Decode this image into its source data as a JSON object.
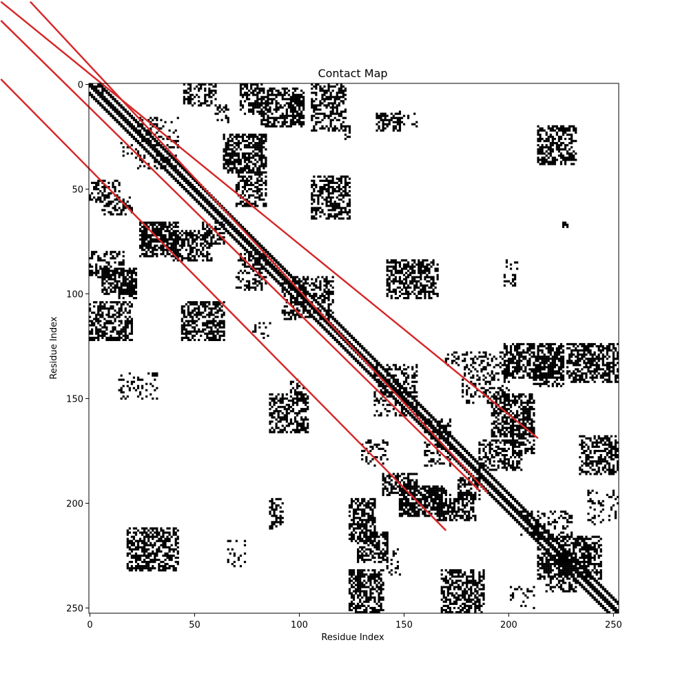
{
  "chart_data": {
    "type": "heatmap",
    "title": "Contact Map",
    "xlabel": "Residue Index",
    "ylabel": "Residue Index",
    "n_residues": 253,
    "xlim": [
      0,
      252
    ],
    "ylim": [
      252,
      0
    ],
    "x_ticks": [
      0,
      50,
      100,
      150,
      200,
      250
    ],
    "y_ticks": [
      0,
      50,
      100,
      150,
      200,
      250
    ],
    "grid": false,
    "colors": {
      "contact": "#000000",
      "background": "#ffffff",
      "overlay": "#d62728"
    },
    "diagonal_bands": [
      {
        "offset": 0,
        "start": 0,
        "end": 252,
        "width": 2
      },
      {
        "offset": 4,
        "start": 0,
        "end": 248,
        "width": 2
      }
    ],
    "contact_blocks": [
      {
        "x": [
          2,
          6
        ],
        "y": [
          0,
          4
        ],
        "density": 0.5
      },
      {
        "x": [
          45,
          60
        ],
        "y": [
          0,
          10
        ],
        "density": 0.45
      },
      {
        "x": [
          60,
          66
        ],
        "y": [
          10,
          18
        ],
        "density": 0.4
      },
      {
        "x": [
          72,
          82
        ],
        "y": [
          0,
          14
        ],
        "density": 0.5
      },
      {
        "x": [
          82,
          102
        ],
        "y": [
          2,
          20
        ],
        "density": 0.6
      },
      {
        "x": [
          106,
          122
        ],
        "y": [
          0,
          22
        ],
        "density": 0.5
      },
      {
        "x": [
          122,
          124
        ],
        "y": [
          20,
          26
        ],
        "density": 0.4
      },
      {
        "x": [
          137,
          148
        ],
        "y": [
          14,
          22
        ],
        "density": 0.5
      },
      {
        "x": [
          148,
          156
        ],
        "y": [
          12,
          20
        ],
        "density": 0.2
      },
      {
        "x": [
          64,
          84
        ],
        "y": [
          24,
          42
        ],
        "density": 0.65
      },
      {
        "x": [
          70,
          84
        ],
        "y": [
          42,
          58
        ],
        "density": 0.5
      },
      {
        "x": [
          22,
          42
        ],
        "y": [
          16,
          40
        ],
        "density": 0.25
      },
      {
        "x": [
          14,
          20
        ],
        "y": [
          28,
          34
        ],
        "density": 0.3
      },
      {
        "x": [
          106,
          124
        ],
        "y": [
          44,
          64
        ],
        "density": 0.55
      },
      {
        "x": [
          214,
          232
        ],
        "y": [
          20,
          38
        ],
        "density": 0.55
      },
      {
        "x": [
          226,
          228
        ],
        "y": [
          66,
          68
        ],
        "density": 0.8
      },
      {
        "x": [
          198,
          204
        ],
        "y": [
          84,
          96
        ],
        "density": 0.25
      },
      {
        "x": [
          142,
          166
        ],
        "y": [
          84,
          102
        ],
        "density": 0.55
      },
      {
        "x": [
          110,
          114
        ],
        "y": [
          94,
          104
        ],
        "density": 0.3
      },
      {
        "x": [
          0,
          14
        ],
        "y": [
          46,
          56
        ],
        "density": 0.4
      },
      {
        "x": [
          6,
          20
        ],
        "y": [
          54,
          62
        ],
        "density": 0.35
      },
      {
        "x": [
          24,
          42
        ],
        "y": [
          66,
          82
        ],
        "density": 0.7
      },
      {
        "x": [
          40,
          58
        ],
        "y": [
          70,
          84
        ],
        "density": 0.55
      },
      {
        "x": [
          54,
          64
        ],
        "y": [
          66,
          76
        ],
        "density": 0.45
      },
      {
        "x": [
          0,
          16
        ],
        "y": [
          80,
          92
        ],
        "density": 0.45
      },
      {
        "x": [
          6,
          22
        ],
        "y": [
          88,
          100
        ],
        "density": 0.65
      },
      {
        "x": [
          14,
          22
        ],
        "y": [
          96,
          102
        ],
        "density": 0.45
      },
      {
        "x": [
          0,
          20
        ],
        "y": [
          104,
          122
        ],
        "density": 0.55
      },
      {
        "x": [
          44,
          64
        ],
        "y": [
          104,
          122
        ],
        "density": 0.55
      },
      {
        "x": [
          70,
          84
        ],
        "y": [
          80,
          98
        ],
        "density": 0.35
      },
      {
        "x": [
          92,
          116
        ],
        "y": [
          92,
          112
        ],
        "density": 0.4
      },
      {
        "x": [
          78,
          86
        ],
        "y": [
          114,
          122
        ],
        "density": 0.2
      },
      {
        "x": [
          14,
          32
        ],
        "y": [
          138,
          150
        ],
        "density": 0.3
      },
      {
        "x": [
          86,
          104
        ],
        "y": [
          148,
          166
        ],
        "density": 0.55
      },
      {
        "x": [
          96,
          102
        ],
        "y": [
          140,
          148
        ],
        "density": 0.3
      },
      {
        "x": [
          136,
          156
        ],
        "y": [
          134,
          158
        ],
        "density": 0.35
      },
      {
        "x": [
          170,
          176
        ],
        "y": [
          128,
          134
        ],
        "density": 0.3
      },
      {
        "x": [
          178,
          200
        ],
        "y": [
          128,
          152
        ],
        "density": 0.3
      },
      {
        "x": [
          198,
          226
        ],
        "y": [
          124,
          140
        ],
        "density": 0.6
      },
      {
        "x": [
          212,
          226
        ],
        "y": [
          130,
          144
        ],
        "density": 0.5
      },
      {
        "x": [
          228,
          252
        ],
        "y": [
          124,
          142
        ],
        "density": 0.55
      },
      {
        "x": [
          192,
          212
        ],
        "y": [
          148,
          168
        ],
        "density": 0.6
      },
      {
        "x": [
          202,
          212
        ],
        "y": [
          164,
          176
        ],
        "density": 0.45
      },
      {
        "x": [
          186,
          206
        ],
        "y": [
          170,
          184
        ],
        "density": 0.5
      },
      {
        "x": [
          160,
          172
        ],
        "y": [
          160,
          182
        ],
        "density": 0.3
      },
      {
        "x": [
          130,
          142
        ],
        "y": [
          170,
          182
        ],
        "density": 0.25
      },
      {
        "x": [
          140,
          156
        ],
        "y": [
          186,
          196
        ],
        "density": 0.55
      },
      {
        "x": [
          148,
          170
        ],
        "y": [
          192,
          206
        ],
        "density": 0.65
      },
      {
        "x": [
          166,
          184
        ],
        "y": [
          196,
          208
        ],
        "density": 0.55
      },
      {
        "x": [
          176,
          186
        ],
        "y": [
          188,
          198
        ],
        "density": 0.5
      },
      {
        "x": [
          124,
          136
        ],
        "y": [
          198,
          218
        ],
        "density": 0.6
      },
      {
        "x": [
          128,
          142
        ],
        "y": [
          214,
          228
        ],
        "density": 0.6
      },
      {
        "x": [
          142,
          148
        ],
        "y": [
          222,
          234
        ],
        "density": 0.2
      },
      {
        "x": [
          124,
          140
        ],
        "y": [
          232,
          252
        ],
        "density": 0.6
      },
      {
        "x": [
          168,
          188
        ],
        "y": [
          232,
          252
        ],
        "density": 0.55
      },
      {
        "x": [
          234,
          252
        ],
        "y": [
          168,
          186
        ],
        "density": 0.5
      },
      {
        "x": [
          238,
          252
        ],
        "y": [
          194,
          210
        ],
        "density": 0.2
      },
      {
        "x": [
          206,
          230
        ],
        "y": [
          204,
          216
        ],
        "density": 0.3
      },
      {
        "x": [
          214,
          244
        ],
        "y": [
          216,
          236
        ],
        "density": 0.55
      },
      {
        "x": [
          218,
          232
        ],
        "y": [
          228,
          242
        ],
        "density": 0.45
      },
      {
        "x": [
          200,
          212
        ],
        "y": [
          240,
          250
        ],
        "density": 0.15
      },
      {
        "x": [
          18,
          42
        ],
        "y": [
          212,
          232
        ],
        "density": 0.55
      },
      {
        "x": [
          86,
          92
        ],
        "y": [
          198,
          212
        ],
        "density": 0.35
      },
      {
        "x": [
          66,
          74
        ],
        "y": [
          218,
          230
        ],
        "density": 0.15
      }
    ],
    "overlay_lines": [
      {
        "from": [
          0,
          0
        ],
        "to": [
          214,
          169
        ]
      },
      {
        "from": [
          0,
          0
        ],
        "to": [
          190,
          195
        ]
      },
      {
        "from": [
          0,
          0
        ],
        "to": [
          186,
          194
        ]
      },
      {
        "from": [
          0,
          0
        ],
        "to": [
          170,
          213
        ]
      }
    ]
  }
}
